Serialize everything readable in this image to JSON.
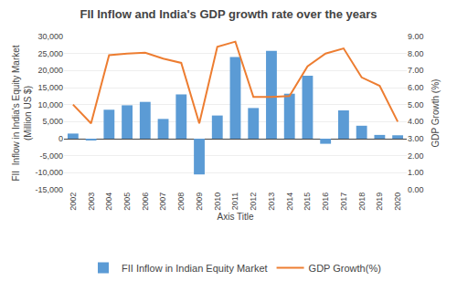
{
  "chart_data": {
    "type": "bar",
    "title": "FII Inflow and India's GDP growth rate over the years",
    "xlabel": "Axis Title",
    "ylabel": "FII  Inflow in India's Equity Market\n(Million US $)",
    "y2label": "GDP Growth (%)",
    "categories": [
      "2002",
      "2003",
      "2004",
      "2005",
      "2006",
      "2007",
      "2008",
      "2009",
      "2010",
      "2011",
      "2012",
      "2013",
      "2014",
      "2015",
      "2016",
      "2017",
      "2018",
      "2019",
      "2020"
    ],
    "series": [
      {
        "name": "FII Inflow in Indian Equity Market",
        "type": "bar",
        "color": "#5B9BD5",
        "values": [
          1500,
          -400,
          8500,
          9800,
          10800,
          5800,
          13000,
          -10500,
          6800,
          24000,
          9000,
          25800,
          13200,
          18500,
          -1500,
          8300,
          3800,
          1100,
          1000
        ]
      },
      {
        "name": "GDP Growth(%)",
        "type": "line",
        "axis": "y2",
        "color": "#ED7D31",
        "values": [
          5.0,
          3.9,
          7.9,
          8.0,
          8.05,
          7.7,
          7.45,
          3.9,
          8.4,
          8.7,
          5.45,
          5.45,
          5.5,
          7.25,
          8.0,
          8.3,
          6.6,
          6.1,
          4.0
        ]
      }
    ],
    "ylim": [
      -15000,
      30000
    ],
    "yticks": [
      {
        "value": -15000,
        "label": "-15,000"
      },
      {
        "value": -10000,
        "label": "-10,000"
      },
      {
        "value": -5000,
        "label": "-5,000"
      },
      0,
      {
        "value": 5000,
        "label": "5,000"
      },
      {
        "value": 10000,
        "label": "10,000"
      },
      {
        "value": 15000,
        "label": "15,000"
      },
      {
        "value": 20000,
        "label": "20,000"
      },
      {
        "value": 25000,
        "label": "25,000"
      },
      {
        "value": 30000,
        "label": "30,000"
      }
    ],
    "y2lim": [
      0,
      9
    ],
    "y2ticks": [
      {
        "value": 0,
        "label": "0.00"
      },
      {
        "value": 1,
        "label": "1.00"
      },
      {
        "value": 2,
        "label": "2.00"
      },
      {
        "value": 3,
        "label": "3.00"
      },
      {
        "value": 4,
        "label": "4.00"
      },
      {
        "value": 5,
        "label": "5.00"
      },
      {
        "value": 6,
        "label": "6.00"
      },
      {
        "value": 7,
        "label": "7.00"
      },
      {
        "value": 8,
        "label": "8.00"
      },
      {
        "value": 9,
        "label": "9.00"
      }
    ],
    "grid": true,
    "legend": "bottom"
  }
}
